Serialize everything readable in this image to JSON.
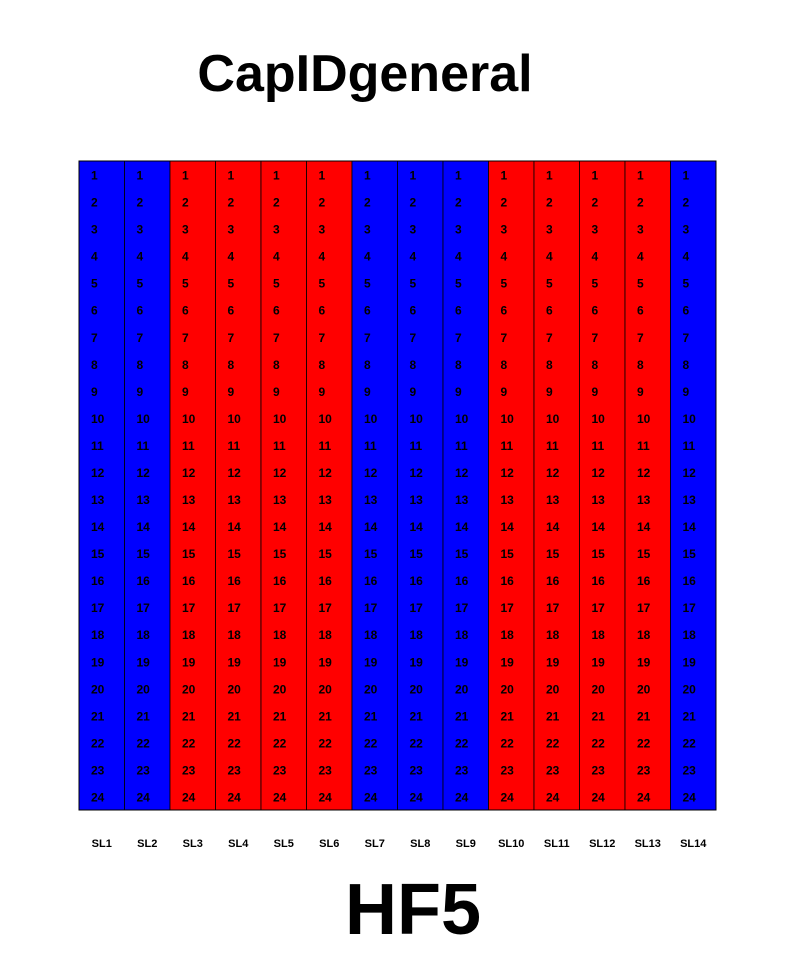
{
  "title": "CapIDgeneral",
  "footer_label": "HF5",
  "colors": {
    "blue": "#0000ff",
    "red": "#ff0000",
    "border": "#000000",
    "text": "#000000"
  },
  "chart_data": {
    "type": "heatmap",
    "title": "CapIDgeneral",
    "columns": [
      "SL1",
      "SL2",
      "SL3",
      "SL4",
      "SL5",
      "SL6",
      "SL7",
      "SL8",
      "SL9",
      "SL10",
      "SL11",
      "SL12",
      "SL13",
      "SL14"
    ],
    "rows": [
      1,
      2,
      3,
      4,
      5,
      6,
      7,
      8,
      9,
      10,
      11,
      12,
      13,
      14,
      15,
      16,
      17,
      18,
      19,
      20,
      21,
      22,
      23,
      24
    ],
    "column_colors": [
      "blue",
      "blue",
      "red",
      "red",
      "red",
      "red",
      "blue",
      "blue",
      "blue",
      "red",
      "red",
      "red",
      "red",
      "blue"
    ],
    "cell_labels": "row index printed in every cell",
    "grid": true
  }
}
